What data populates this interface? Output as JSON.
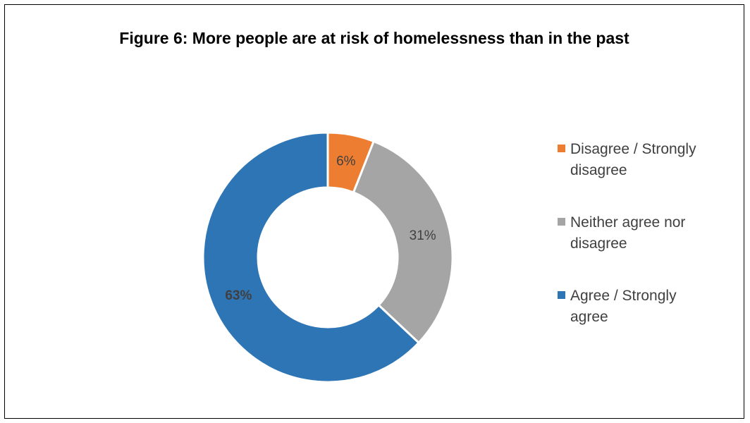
{
  "chart_data": {
    "type": "pie",
    "donut": true,
    "title": "Figure 6: More people are at risk of homelessness than in the past",
    "series": [
      {
        "name": "Disagree / Strongly disagree",
        "value": 6,
        "label": "6%",
        "color": "#ED7D31",
        "label_bold": false
      },
      {
        "name": "Neither agree nor disagree",
        "value": 31,
        "label": "31%",
        "color": "#A5A5A5",
        "label_bold": false
      },
      {
        "name": "Agree / Strongly agree",
        "value": 63,
        "label": "63%",
        "color": "#2E75B6",
        "label_bold": true
      }
    ],
    "legend_position": "right",
    "colors": {
      "label_text": "#404040",
      "legend_text": "#404040",
      "border": "#000000"
    }
  }
}
